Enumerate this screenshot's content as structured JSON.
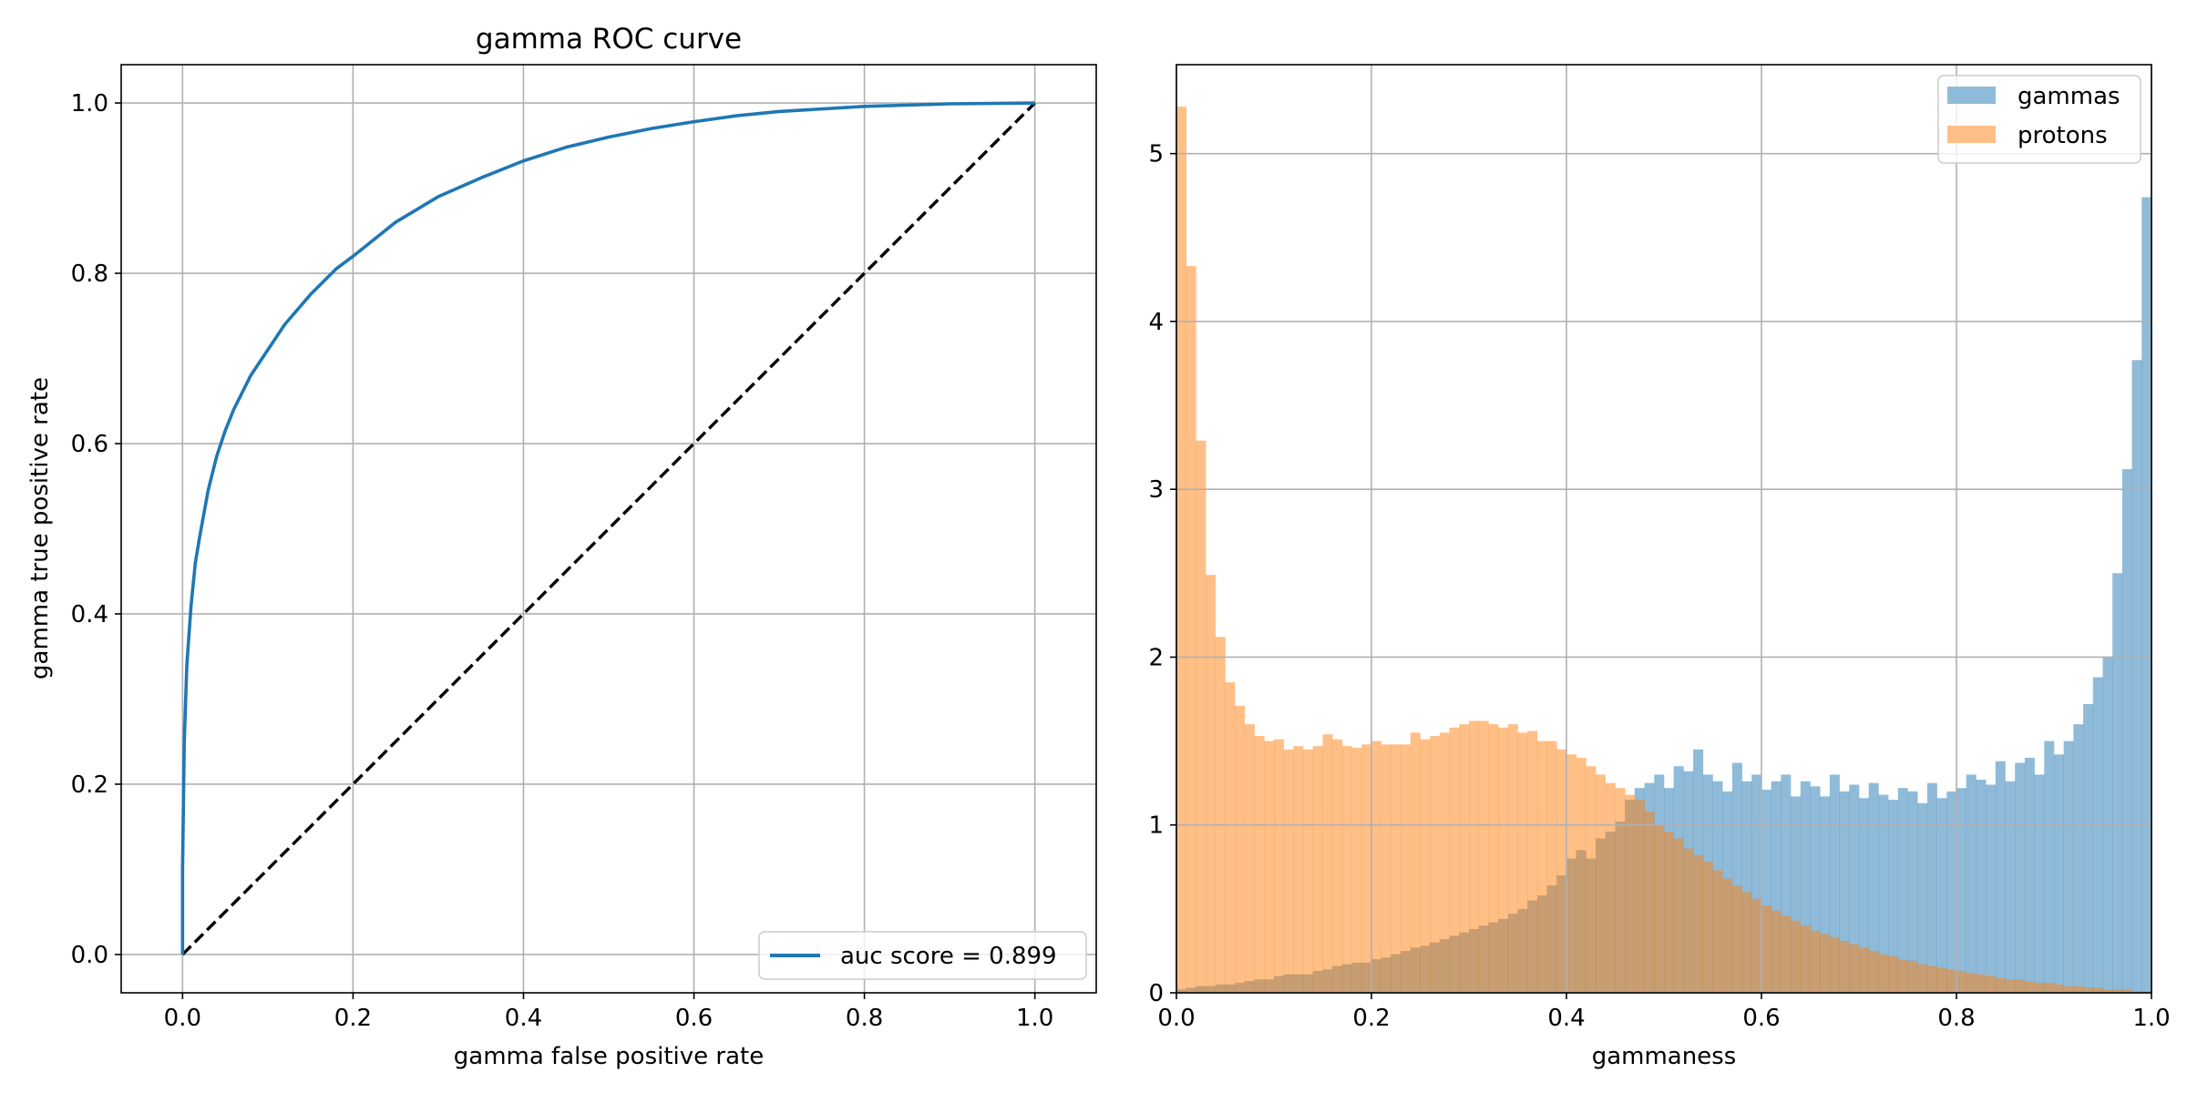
{
  "chart_data": [
    {
      "type": "line",
      "title": "gamma ROC curve",
      "xlabel": "gamma false positive rate",
      "ylabel": "gamma true positive rate",
      "xlim": [
        -0.072,
        1.072
      ],
      "ylim": [
        -0.045,
        1.045
      ],
      "xticks": [
        "0.0",
        "0.2",
        "0.4",
        "0.6",
        "0.8",
        "1.0"
      ],
      "yticks": [
        "0.0",
        "0.2",
        "0.4",
        "0.6",
        "0.8",
        "1.0"
      ],
      "grid": true,
      "legend_position": "lower right",
      "colors": {
        "roc": "#1f77b4",
        "diagonal": "#000000"
      },
      "series": [
        {
          "name": "auc score = 0.899",
          "x": [
            0.0,
            0.0,
            0.002,
            0.005,
            0.01,
            0.015,
            0.02,
            0.03,
            0.04,
            0.05,
            0.06,
            0.08,
            0.1,
            0.12,
            0.15,
            0.18,
            0.2,
            0.25,
            0.3,
            0.35,
            0.4,
            0.45,
            0.5,
            0.55,
            0.6,
            0.65,
            0.7,
            0.8,
            0.9,
            1.0
          ],
          "y": [
            0.0,
            0.1,
            0.25,
            0.34,
            0.41,
            0.46,
            0.49,
            0.545,
            0.585,
            0.615,
            0.64,
            0.68,
            0.71,
            0.74,
            0.775,
            0.805,
            0.82,
            0.86,
            0.89,
            0.912,
            0.932,
            0.948,
            0.96,
            0.97,
            0.978,
            0.985,
            0.99,
            0.996,
            0.999,
            1.0
          ]
        },
        {
          "style": "dashed",
          "x": [
            0.0,
            1.0
          ],
          "y": [
            0.0,
            1.0
          ]
        }
      ]
    },
    {
      "type": "bar",
      "subtype": "histogram",
      "xlabel": "gammaness",
      "ylabel": "",
      "xlim": [
        0.0,
        1.0
      ],
      "ylim": [
        0.0,
        5.53
      ],
      "xticks": [
        "0.0",
        "0.2",
        "0.4",
        "0.6",
        "0.8",
        "1.0"
      ],
      "yticks": [
        "0",
        "1",
        "2",
        "3",
        "4",
        "5"
      ],
      "grid": true,
      "legend_position": "upper right",
      "bins": 100,
      "bin_range": [
        0.0,
        1.0
      ],
      "series": [
        {
          "name": "gammas",
          "color": "#1f77b4",
          "alpha": 0.5,
          "values": [
            0.02,
            0.03,
            0.04,
            0.04,
            0.05,
            0.05,
            0.06,
            0.07,
            0.08,
            0.08,
            0.1,
            0.11,
            0.11,
            0.11,
            0.13,
            0.14,
            0.16,
            0.17,
            0.18,
            0.18,
            0.2,
            0.21,
            0.23,
            0.25,
            0.27,
            0.28,
            0.3,
            0.32,
            0.34,
            0.36,
            0.38,
            0.4,
            0.42,
            0.44,
            0.47,
            0.5,
            0.55,
            0.58,
            0.64,
            0.7,
            0.8,
            0.85,
            0.8,
            0.92,
            0.96,
            1.02,
            1.15,
            1.22,
            1.25,
            1.3,
            1.22,
            1.35,
            1.32,
            1.45,
            1.3,
            1.26,
            1.2,
            1.37,
            1.26,
            1.3,
            1.21,
            1.26,
            1.3,
            1.17,
            1.26,
            1.23,
            1.17,
            1.3,
            1.2,
            1.24,
            1.16,
            1.25,
            1.18,
            1.15,
            1.22,
            1.2,
            1.13,
            1.25,
            1.16,
            1.2,
            1.22,
            1.3,
            1.27,
            1.24,
            1.38,
            1.26,
            1.37,
            1.4,
            1.3,
            1.5,
            1.42,
            1.5,
            1.6,
            1.72,
            1.88,
            2.0,
            2.5,
            3.12,
            3.77,
            4.74
          ]
        },
        {
          "name": "protons",
          "color": "#ff7f0e",
          "alpha": 0.5,
          "values": [
            5.28,
            4.33,
            3.29,
            2.49,
            2.12,
            1.85,
            1.71,
            1.6,
            1.53,
            1.5,
            1.51,
            1.45,
            1.47,
            1.45,
            1.47,
            1.54,
            1.51,
            1.47,
            1.46,
            1.48,
            1.5,
            1.48,
            1.48,
            1.48,
            1.55,
            1.51,
            1.53,
            1.55,
            1.58,
            1.6,
            1.62,
            1.62,
            1.6,
            1.58,
            1.6,
            1.55,
            1.56,
            1.5,
            1.5,
            1.45,
            1.42,
            1.4,
            1.35,
            1.3,
            1.25,
            1.22,
            1.18,
            1.15,
            1.08,
            1.0,
            0.96,
            0.92,
            0.86,
            0.82,
            0.78,
            0.73,
            0.68,
            0.64,
            0.6,
            0.56,
            0.52,
            0.49,
            0.46,
            0.43,
            0.4,
            0.37,
            0.35,
            0.33,
            0.31,
            0.29,
            0.27,
            0.25,
            0.23,
            0.22,
            0.2,
            0.19,
            0.17,
            0.16,
            0.15,
            0.14,
            0.13,
            0.12,
            0.11,
            0.1,
            0.09,
            0.08,
            0.08,
            0.07,
            0.06,
            0.06,
            0.05,
            0.04,
            0.04,
            0.03,
            0.03,
            0.02,
            0.02,
            0.02,
            0.01,
            0.01
          ]
        }
      ]
    }
  ]
}
